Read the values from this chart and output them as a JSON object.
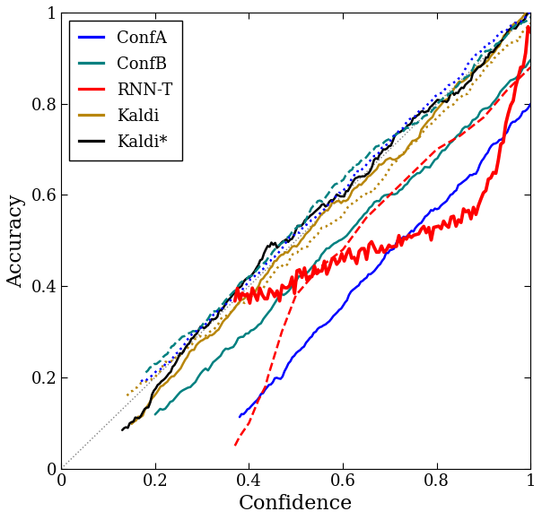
{
  "title": "",
  "xlabel": "Confidence",
  "ylabel": "Accuracy",
  "xlim": [
    0,
    1
  ],
  "ylim": [
    0,
    1
  ],
  "legend_labels": [
    "ConfA",
    "ConfB",
    "RNN-T",
    "Kaldi",
    "Kaldi*"
  ],
  "colors": {
    "ConfA": "#0000ff",
    "ConfB": "#008080",
    "RNN-T": "#ff0000",
    "Kaldi": "#b8860b",
    "Kaldi*": "#000000"
  },
  "diagonal_color": "#808080",
  "linewidth": 1.8
}
